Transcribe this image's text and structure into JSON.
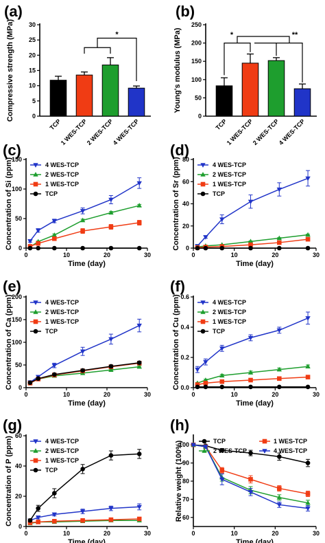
{
  "colors": {
    "TCP": "#000000",
    "1 WES-TCP": "#f03c14",
    "2 WES-TCP": "#1e9e2e",
    "4 WES-TCP": "#2034c8"
  },
  "chart_data": [
    {
      "id": "a",
      "panel_label": "(a)",
      "type": "bar",
      "ylabel": "Compressive strength (MPa)",
      "categories": [
        "TCP",
        "1 WES-TCP",
        "2 WES-TCP",
        "4 WES-TCP"
      ],
      "values": [
        11.8,
        13.5,
        16.8,
        9.2
      ],
      "errors": [
        1.3,
        1.0,
        2.4,
        0.7
      ],
      "ylim": [
        0,
        30
      ],
      "yticks": [
        0,
        5,
        10,
        15,
        20,
        25,
        30
      ],
      "significance": [
        {
          "text": "*"
        }
      ]
    },
    {
      "id": "b",
      "panel_label": "(b)",
      "type": "bar",
      "ylabel": "Young's modulus (MPa)",
      "categories": [
        "TCP",
        "1 WES-TCP",
        "2 WES-TCP",
        "4 WES-TCP"
      ],
      "values": [
        83,
        145,
        152,
        75
      ],
      "errors": [
        22,
        25,
        8,
        13
      ],
      "ylim": [
        0,
        250
      ],
      "yticks": [
        0,
        50,
        100,
        150,
        200,
        250
      ],
      "significance": [
        {
          "text": "*"
        },
        {
          "text": "**"
        }
      ]
    },
    {
      "id": "c",
      "panel_label": "(c)",
      "type": "line",
      "xlabel": "Time (day)",
      "ylabel": "Concentration of Si (ppm)",
      "x": [
        1,
        3,
        7,
        14,
        21,
        28
      ],
      "xlim": [
        0,
        30
      ],
      "xticks": [
        0,
        10,
        20,
        30
      ],
      "ylim": [
        0,
        150
      ],
      "yticks": [
        0,
        50,
        100,
        150
      ],
      "legend": "top-left",
      "series": [
        {
          "name": "4 WES-TCP",
          "values": [
            12,
            30,
            46,
            63,
            82,
            110
          ],
          "errors": [
            2,
            3,
            3,
            5,
            7,
            9
          ],
          "marker": "tri-down"
        },
        {
          "name": "2 WES-TCP",
          "values": [
            2,
            11,
            22,
            47,
            60,
            72
          ],
          "errors": [
            1,
            1,
            2,
            2,
            2,
            2
          ],
          "marker": "tri-up"
        },
        {
          "name": "1 WES-TCP",
          "values": [
            3,
            8,
            16,
            29,
            36,
            43
          ],
          "errors": [
            1,
            1,
            2,
            4,
            4,
            4
          ],
          "marker": "square"
        },
        {
          "name": "TCP",
          "values": [
            0,
            0,
            0,
            0,
            0,
            0
          ],
          "errors": [
            0,
            0,
            0,
            0,
            0,
            0
          ],
          "marker": "circle"
        }
      ]
    },
    {
      "id": "d",
      "panel_label": "(d)",
      "type": "line",
      "xlabel": "Time (day)",
      "ylabel": "Concentration of Sr (ppm)",
      "x": [
        1,
        3,
        7,
        14,
        21,
        28
      ],
      "xlim": [
        0,
        30
      ],
      "xticks": [
        0,
        10,
        20,
        30
      ],
      "ylim": [
        0,
        80
      ],
      "yticks": [
        0,
        20,
        40,
        60,
        80
      ],
      "legend": "top-left",
      "series": [
        {
          "name": "4 WES-TCP",
          "values": [
            2,
            10,
            26,
            42,
            53,
            63
          ],
          "errors": [
            1,
            1,
            4,
            6,
            6,
            7
          ],
          "marker": "tri-down"
        },
        {
          "name": "2 WES-TCP",
          "values": [
            1,
            2,
            3,
            6,
            9,
            12
          ],
          "errors": [
            0.3,
            0.3,
            0.4,
            0.5,
            0.5,
            0.6
          ],
          "marker": "tri-up"
        },
        {
          "name": "1 WES-TCP",
          "values": [
            0.5,
            1,
            1.5,
            3,
            5,
            8
          ],
          "errors": [
            0.2,
            0.2,
            0.3,
            0.4,
            0.4,
            0.5
          ],
          "marker": "square"
        },
        {
          "name": "TCP",
          "values": [
            0,
            0,
            0,
            0,
            0,
            0
          ],
          "errors": [
            0,
            0,
            0,
            0,
            0,
            0
          ],
          "marker": "circle"
        }
      ]
    },
    {
      "id": "e",
      "panel_label": "(e)",
      "type": "line",
      "xlabel": "Time (day)",
      "ylabel": "Concentration of Ca (ppm)",
      "x": [
        1,
        3,
        7,
        14,
        21,
        28
      ],
      "xlim": [
        0,
        30
      ],
      "xticks": [
        0,
        10,
        20,
        30
      ],
      "ylim": [
        0,
        200
      ],
      "yticks": [
        0,
        50,
        100,
        150,
        200
      ],
      "legend": "top-left",
      "series": [
        {
          "name": "4 WES-TCP",
          "values": [
            12,
            24,
            49,
            80,
            107,
            137
          ],
          "errors": [
            2,
            3,
            5,
            9,
            11,
            14
          ],
          "marker": "tri-down"
        },
        {
          "name": "2 WES-TCP",
          "values": [
            10,
            19,
            26,
            32,
            39,
            46
          ],
          "errors": [
            1,
            2,
            2,
            2,
            2,
            2
          ],
          "marker": "tri-up"
        },
        {
          "name": "1 WES-TCP",
          "values": [
            10,
            19,
            28,
            37,
            46,
            54
          ],
          "errors": [
            1,
            2,
            2,
            2,
            3,
            3
          ],
          "marker": "square"
        },
        {
          "name": "TCP",
          "values": [
            11,
            20,
            29,
            38,
            47,
            55
          ],
          "errors": [
            1,
            2,
            2,
            3,
            3,
            3
          ],
          "marker": "circle"
        }
      ]
    },
    {
      "id": "f",
      "panel_label": "(f)",
      "type": "line",
      "xlabel": "Time (day)",
      "ylabel": "Concentration of Cu (ppm)",
      "x": [
        1,
        3,
        7,
        14,
        21,
        28
      ],
      "xlim": [
        0,
        30
      ],
      "xticks": [
        0,
        10,
        20,
        30
      ],
      "ylim": [
        0,
        0.6
      ],
      "yticks": [
        0.0,
        0.2,
        0.4,
        0.6
      ],
      "legend": "top-left",
      "series": [
        {
          "name": "4 WES-TCP",
          "values": [
            0.12,
            0.17,
            0.26,
            0.33,
            0.38,
            0.46
          ],
          "errors": [
            0.02,
            0.02,
            0.02,
            0.02,
            0.02,
            0.04
          ],
          "marker": "tri-down"
        },
        {
          "name": "2 WES-TCP",
          "values": [
            0.03,
            0.05,
            0.08,
            0.1,
            0.12,
            0.14
          ],
          "errors": [
            0.005,
            0.006,
            0.008,
            0.01,
            0.01,
            0.01
          ],
          "marker": "tri-up"
        },
        {
          "name": "1 WES-TCP",
          "values": [
            0.02,
            0.03,
            0.04,
            0.05,
            0.06,
            0.07
          ],
          "errors": [
            0.004,
            0.004,
            0.005,
            0.005,
            0.006,
            0.006
          ],
          "marker": "square"
        },
        {
          "name": "TCP",
          "values": [
            0.005,
            0.005,
            0.005,
            0.005,
            0.005,
            0.005
          ],
          "errors": [
            0,
            0,
            0,
            0,
            0,
            0
          ],
          "marker": "circle"
        }
      ]
    },
    {
      "id": "g",
      "panel_label": "(g)",
      "type": "line",
      "xlabel": "Time (day)",
      "ylabel": "Concentration of P (ppm)",
      "x": [
        1,
        3,
        7,
        14,
        21,
        28
      ],
      "xlim": [
        0,
        30
      ],
      "xticks": [
        0,
        10,
        20,
        30
      ],
      "ylim": [
        0,
        60
      ],
      "yticks": [
        0,
        20,
        40,
        60
      ],
      "legend": "top-left",
      "series": [
        {
          "name": "4 WES-TCP",
          "values": [
            4,
            6,
            8,
            10,
            12,
            13
          ],
          "errors": [
            1,
            1,
            1,
            1.5,
            1.5,
            2
          ],
          "marker": "tri-down"
        },
        {
          "name": "2 WES-TCP",
          "values": [
            2,
            3,
            3,
            3.5,
            4,
            4
          ],
          "errors": [
            0.3,
            0.3,
            0.3,
            0.3,
            0.3,
            0.3
          ],
          "marker": "tri-up"
        },
        {
          "name": "1 WES-TCP",
          "values": [
            2.5,
            3,
            3.5,
            4,
            4.5,
            5
          ],
          "errors": [
            0.3,
            0.3,
            0.3,
            0.3,
            0.3,
            0.3
          ],
          "marker": "square"
        },
        {
          "name": "TCP",
          "values": [
            4,
            12,
            22,
            38,
            47,
            48
          ],
          "errors": [
            1,
            2,
            3,
            3,
            3,
            3
          ],
          "marker": "circle"
        }
      ]
    },
    {
      "id": "h",
      "panel_label": "(h)",
      "type": "line",
      "xlabel": "Time (day)",
      "ylabel": "Relative weight (100%)",
      "x": [
        0,
        3,
        7,
        14,
        21,
        28
      ],
      "xlim": [
        0,
        30
      ],
      "xticks": [
        0,
        10,
        20,
        30
      ],
      "ylim": [
        55,
        105
      ],
      "yticks": [
        60,
        70,
        80,
        90,
        100
      ],
      "legend": "top",
      "series": [
        {
          "name": "TCP",
          "values": [
            100,
            99.5,
            97,
            95.5,
            93.5,
            90
          ],
          "errors": [
            0.5,
            0.5,
            1,
            1.5,
            2,
            2
          ],
          "marker": "circle"
        },
        {
          "name": "1 WES-TCP",
          "values": [
            100,
            99,
            86,
            81,
            76,
            73
          ],
          "errors": [
            0.5,
            0.5,
            1.5,
            2,
            1.5,
            1.5
          ],
          "marker": "square"
        },
        {
          "name": "2 WES-TCP",
          "values": [
            100,
            99,
            82,
            75,
            71,
            68
          ],
          "errors": [
            0.5,
            0.5,
            2,
            2,
            1.5,
            1.5
          ],
          "marker": "tri-up"
        },
        {
          "name": "4 WES-TCP",
          "values": [
            100,
            99,
            81,
            74,
            67,
            65
          ],
          "errors": [
            0.5,
            0.5,
            3,
            2,
            1.5,
            1.5
          ],
          "marker": "tri-down"
        }
      ]
    }
  ]
}
